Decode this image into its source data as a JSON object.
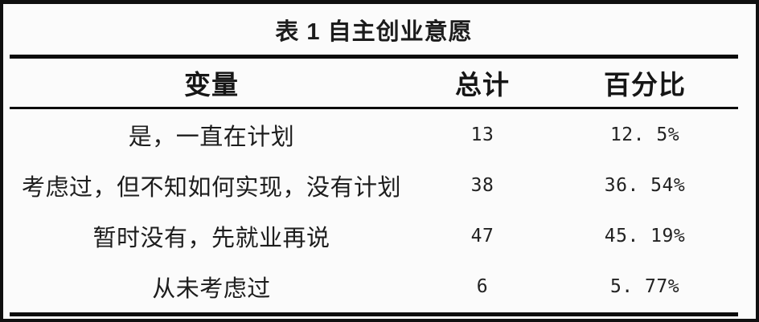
{
  "table": {
    "title": "表 1 自主创业意愿",
    "columns": [
      "变量",
      "总计",
      "百分比"
    ],
    "rows": [
      {
        "label": "是，一直在计划",
        "total": "13",
        "percent": "12. 5%"
      },
      {
        "label": "考虑过，但不知如何实现，没有计划",
        "total": "38",
        "percent": "36. 54%"
      },
      {
        "label": "暂时没有，先就业再说",
        "total": "47",
        "percent": "45. 19%"
      },
      {
        "label": "从未考虑过",
        "total": "6",
        "percent": "5. 77%"
      }
    ]
  },
  "chart_data": {
    "type": "table",
    "title": "表 1 自主创业意愿",
    "columns": [
      "变量",
      "总计",
      "百分比"
    ],
    "rows": [
      [
        "是，一直在计划",
        13,
        "12.5%"
      ],
      [
        "考虑过，但不知如何实现，没有计划",
        38,
        "36.54%"
      ],
      [
        "暂时没有，先就业再说",
        47,
        "45.19%"
      ],
      [
        "从未考虑过",
        6,
        "5.77%"
      ]
    ],
    "totals": [
      13,
      38,
      47,
      6
    ],
    "percentages": [
      12.5,
      36.54,
      45.19,
      5.77
    ],
    "layout": {
      "title_position": "top-center",
      "rules": [
        "thick-under-title",
        "thin-under-header",
        "thick-bottom"
      ],
      "column_alignment": "center",
      "grid_vertical_lines": false
    }
  },
  "colors": {
    "text": "#1c1c1c",
    "rule": "#0c0c0c",
    "border": "#101010",
    "background": "#fbfbfb"
  }
}
